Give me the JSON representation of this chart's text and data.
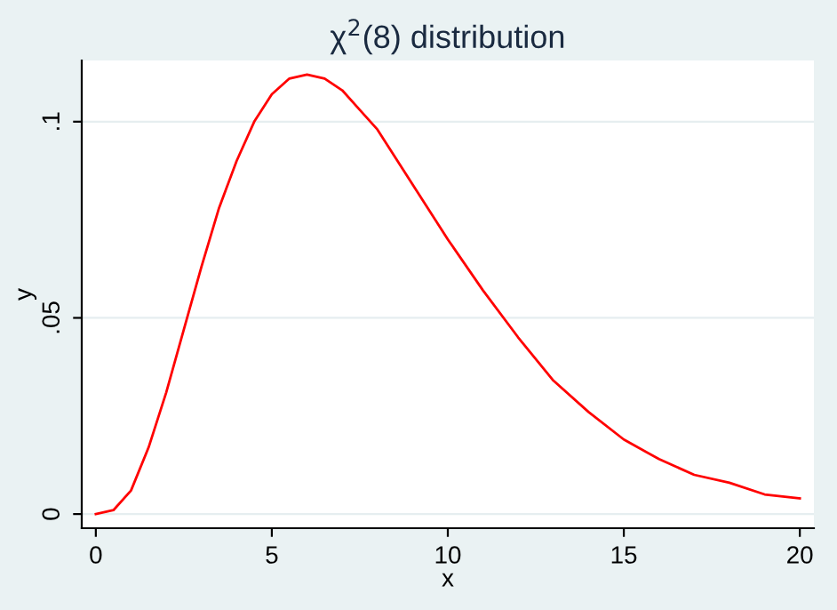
{
  "chart_data": {
    "type": "line",
    "title": "χ$^{2}$(8) distribution",
    "xlabel": "x",
    "ylabel": "y",
    "x": [
      0,
      0.5,
      1,
      1.5,
      2,
      2.5,
      3,
      3.5,
      4,
      4.5,
      5,
      5.5,
      6,
      6.5,
      7,
      7.5,
      8,
      9,
      10,
      11,
      12,
      13,
      14,
      15,
      16,
      17,
      18,
      19,
      20
    ],
    "series": [
      {
        "color": "#ff0000",
        "values": [
          0,
          0.001,
          0.006,
          0.017,
          0.031,
          0.047,
          0.063,
          0.078,
          0.09,
          0.1,
          0.107,
          0.111,
          0.112,
          0.111,
          0.108,
          0.103,
          0.098,
          0.084,
          0.07,
          0.057,
          0.045,
          0.034,
          0.026,
          0.019,
          0.014,
          0.01,
          0.008,
          0.005,
          0.004
        ]
      }
    ],
    "xlim": [
      -0.4,
      20.4
    ],
    "ylim": [
      -0.0036,
      0.1156
    ],
    "xticks": [
      0,
      5,
      10,
      15,
      20
    ],
    "yticks": [
      {
        "value": 0,
        "label": "0"
      },
      {
        "value": 0.05,
        "label": ".05"
      },
      {
        "value": 0.1,
        "label": ".1"
      }
    ],
    "grid": "y",
    "marker": "none",
    "line_style": "solid"
  }
}
